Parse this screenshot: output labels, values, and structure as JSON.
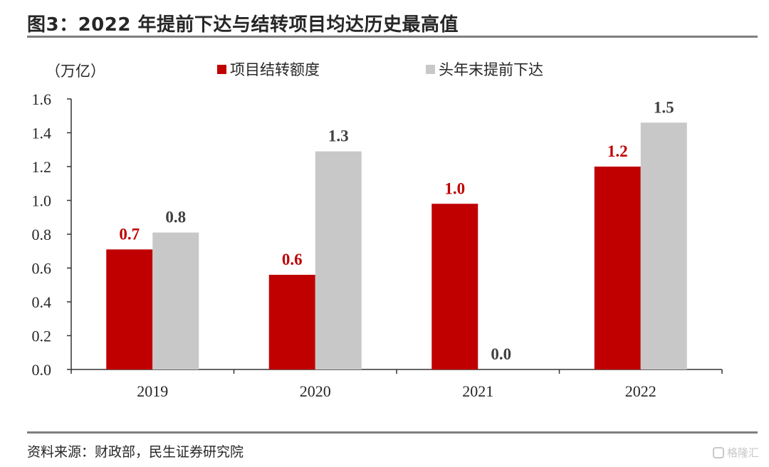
{
  "header": {
    "title": "图3：2022 年提前下达与结转项目均达历史最高值"
  },
  "footer": {
    "source": "资料来源：财政部，民生证券研究院",
    "watermark": "格隆汇"
  },
  "chart_data": {
    "type": "bar",
    "unit_label": "（万亿）",
    "categories": [
      "2019",
      "2020",
      "2021",
      "2022"
    ],
    "series": [
      {
        "name": "项目结转额度",
        "color": "#c00000",
        "label_color": "#c00000",
        "values": [
          0.71,
          0.56,
          0.98,
          1.2
        ],
        "labels": [
          "0.7",
          "0.6",
          "1.0",
          "1.2"
        ]
      },
      {
        "name": "头年末提前下达",
        "color": "#c8c8c8",
        "label_color": "#404040",
        "values": [
          0.81,
          1.29,
          0.0,
          1.46
        ],
        "labels": [
          "0.8",
          "1.3",
          "0.0",
          "1.5"
        ]
      }
    ],
    "ylim": [
      0,
      1.6
    ],
    "yticks": [
      "0.0",
      "0.2",
      "0.4",
      "0.6",
      "0.8",
      "1.0",
      "1.2",
      "1.4",
      "1.6"
    ],
    "legend_position": "top",
    "grid": false
  }
}
